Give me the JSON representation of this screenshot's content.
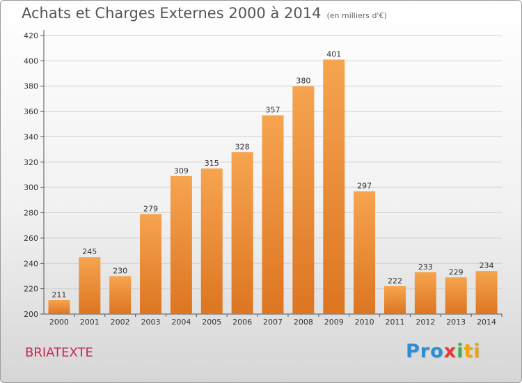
{
  "header": {
    "title": "Achats et Charges Externes 2000 à 2014",
    "unit": "(en milliers d'€)"
  },
  "footer": {
    "place": "BRIATEXTE",
    "logo_parts": [
      "Pro",
      "x",
      "i",
      "ti"
    ]
  },
  "colors": {
    "bar_top": "#f6a44f",
    "bar_bottom": "#dd7521",
    "place_name": "#c8274f",
    "grid": "#d0d0d0"
  },
  "chart_data": {
    "type": "bar",
    "title": "Achats et Charges Externes 2000 à 2014",
    "subtitle": "(en milliers d'€)",
    "xlabel": "",
    "ylabel": "",
    "categories": [
      "2000",
      "2001",
      "2002",
      "2003",
      "2004",
      "2005",
      "2006",
      "2007",
      "2008",
      "2009",
      "2010",
      "2011",
      "2012",
      "2013",
      "2014"
    ],
    "values": [
      211,
      245,
      230,
      279,
      309,
      315,
      328,
      357,
      380,
      401,
      297,
      222,
      233,
      229,
      234
    ],
    "ylim": [
      200,
      420
    ],
    "yticks": [
      200,
      220,
      240,
      260,
      280,
      300,
      320,
      340,
      360,
      380,
      400,
      420
    ],
    "grid": true,
    "data_labels": true
  }
}
